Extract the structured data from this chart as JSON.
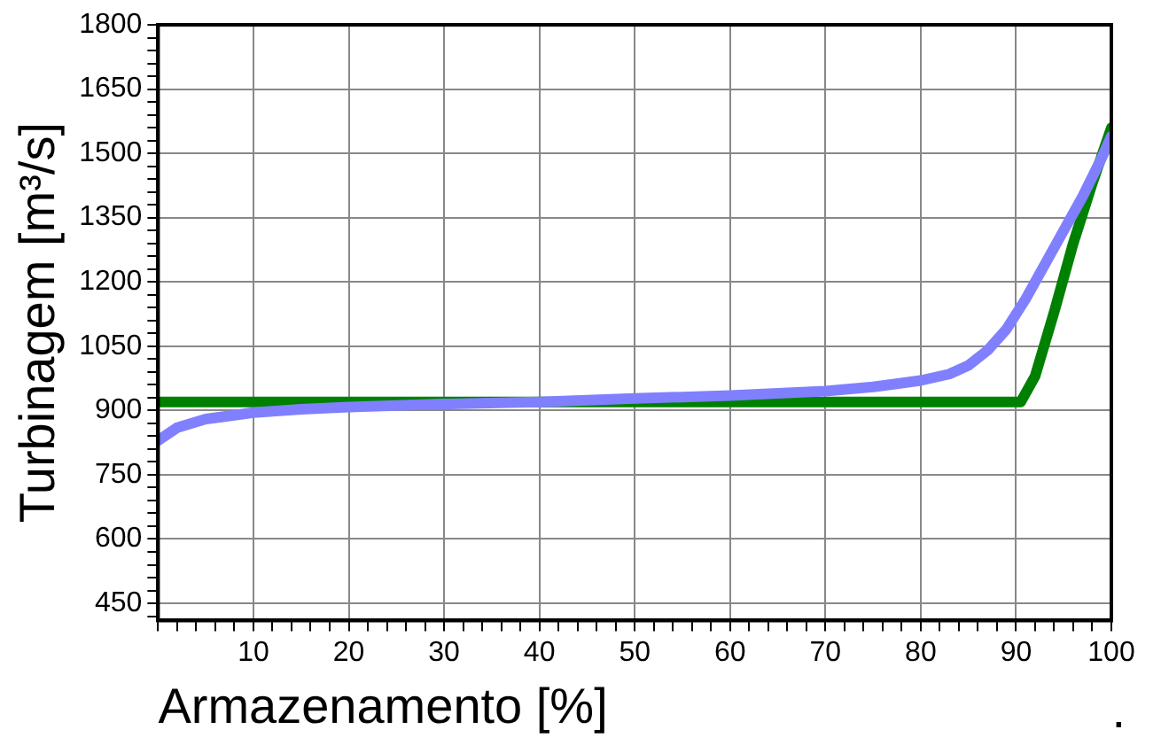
{
  "chart_data": {
    "type": "line",
    "xlabel": "Armazenamento [%]",
    "ylabel": "Turbinagem [m³/s]",
    "annotations": [
      "."
    ],
    "series": [
      {
        "color": "#8080ff",
        "x": [
          0,
          2,
          5,
          10,
          15,
          20,
          30,
          40,
          50,
          60,
          70,
          75,
          80,
          83,
          85,
          87,
          89,
          91,
          93,
          95,
          97,
          99,
          100
        ],
        "values": [
          830,
          860,
          880,
          895,
          903,
          908,
          915,
          920,
          928,
          935,
          945,
          955,
          970,
          985,
          1005,
          1040,
          1090,
          1160,
          1240,
          1320,
          1400,
          1490,
          1540
        ]
      },
      {
        "color": "#008000",
        "x": [
          0,
          90.5,
          92,
          94,
          96,
          98,
          100
        ],
        "values": [
          920,
          920,
          980,
          1130,
          1290,
          1430,
          1560
        ]
      }
    ],
    "xlim": [
      0,
      100
    ],
    "ylim": [
      410,
      1800
    ],
    "xticks": [
      {
        "value": 0,
        "label": null
      },
      {
        "value": 2,
        "label": null
      },
      {
        "value": 4,
        "label": null
      },
      {
        "value": 6,
        "label": null
      },
      {
        "value": 8,
        "label": null
      },
      10,
      {
        "value": 12,
        "label": null
      },
      {
        "value": 14,
        "label": null
      },
      {
        "value": 16,
        "label": null
      },
      {
        "value": 18,
        "label": null
      },
      20,
      {
        "value": 22,
        "label": null
      },
      {
        "value": 24,
        "label": null
      },
      {
        "value": 26,
        "label": null
      },
      {
        "value": 28,
        "label": null
      },
      30,
      {
        "value": 32,
        "label": null
      },
      {
        "value": 34,
        "label": null
      },
      {
        "value": 36,
        "label": null
      },
      {
        "value": 38,
        "label": null
      },
      40,
      {
        "value": 42,
        "label": null
      },
      {
        "value": 44,
        "label": null
      },
      {
        "value": 46,
        "label": null
      },
      {
        "value": 48,
        "label": null
      },
      50,
      {
        "value": 52,
        "label": null
      },
      {
        "value": 54,
        "label": null
      },
      {
        "value": 56,
        "label": null
      },
      {
        "value": 58,
        "label": null
      },
      60,
      {
        "value": 62,
        "label": null
      },
      {
        "value": 64,
        "label": null
      },
      {
        "value": 66,
        "label": null
      },
      {
        "value": 68,
        "label": null
      },
      70,
      {
        "value": 72,
        "label": null
      },
      {
        "value": 74,
        "label": null
      },
      {
        "value": 76,
        "label": null
      },
      {
        "value": 78,
        "label": null
      },
      80,
      {
        "value": 82,
        "label": null
      },
      {
        "value": 84,
        "label": null
      },
      {
        "value": 86,
        "label": null
      },
      {
        "value": 88,
        "label": null
      },
      90,
      {
        "value": 92,
        "label": null
      },
      {
        "value": 94,
        "label": null
      },
      {
        "value": 96,
        "label": null
      },
      {
        "value": 98,
        "label": null
      },
      100
    ],
    "yticks": [
      {
        "value": 420,
        "label": null
      },
      450,
      {
        "value": 480,
        "label": null
      },
      {
        "value": 510,
        "label": null
      },
      {
        "value": 540,
        "label": null
      },
      {
        "value": 570,
        "label": null
      },
      600,
      {
        "value": 630,
        "label": null
      },
      {
        "value": 660,
        "label": null
      },
      {
        "value": 690,
        "label": null
      },
      {
        "value": 720,
        "label": null
      },
      750,
      {
        "value": 780,
        "label": null
      },
      {
        "value": 810,
        "label": null
      },
      {
        "value": 840,
        "label": null
      },
      {
        "value": 870,
        "label": null
      },
      900,
      {
        "value": 930,
        "label": null
      },
      {
        "value": 960,
        "label": null
      },
      {
        "value": 990,
        "label": null
      },
      {
        "value": 1020,
        "label": null
      },
      1050,
      {
        "value": 1080,
        "label": null
      },
      {
        "value": 1110,
        "label": null
      },
      {
        "value": 1140,
        "label": null
      },
      {
        "value": 1170,
        "label": null
      },
      1200,
      {
        "value": 1230,
        "label": null
      },
      {
        "value": 1260,
        "label": null
      },
      {
        "value": 1290,
        "label": null
      },
      {
        "value": 1320,
        "label": null
      },
      1350,
      {
        "value": 1380,
        "label": null
      },
      {
        "value": 1410,
        "label": null
      },
      {
        "value": 1440,
        "label": null
      },
      {
        "value": 1470,
        "label": null
      },
      1500,
      {
        "value": 1530,
        "label": null
      },
      {
        "value": 1560,
        "label": null
      },
      {
        "value": 1590,
        "label": null
      },
      {
        "value": 1620,
        "label": null
      },
      1650,
      {
        "value": 1680,
        "label": null
      },
      {
        "value": 1710,
        "label": null
      },
      {
        "value": 1740,
        "label": null
      },
      {
        "value": 1770,
        "label": null
      },
      1800
    ],
    "grid": true,
    "legend": false,
    "marker": "none",
    "line_style": "solid"
  }
}
